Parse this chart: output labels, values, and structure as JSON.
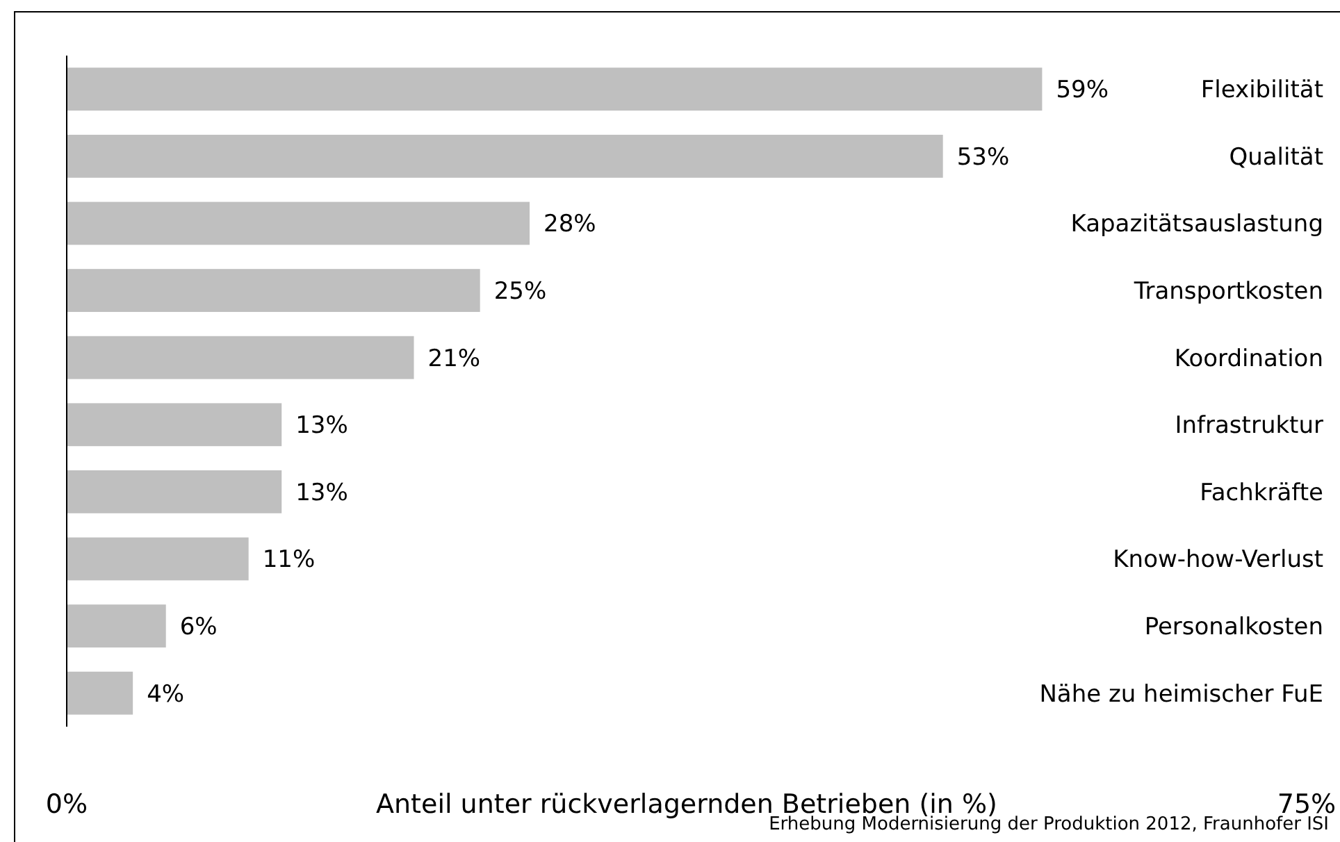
{
  "chart_data": {
    "type": "bar",
    "orientation": "horizontal",
    "xlabel": "Anteil unter rückverlagernden Betrieben (in %)",
    "categories": [
      "Flexibilität",
      "Qualität",
      "Kapazitätsauslastung",
      "Transportkosten",
      "Koordination",
      "Infrastruktur",
      "Fachkräfte",
      "Know-how-Verlust",
      "Personalkosten",
      "Nähe zu heimischer FuE"
    ],
    "values": [
      59,
      53,
      28,
      25,
      21,
      13,
      13,
      11,
      6,
      4
    ],
    "value_labels": [
      "59%",
      "53%",
      "28%",
      "25%",
      "21%",
      "13%",
      "13%",
      "11%",
      "6%",
      "4%"
    ],
    "color": "#bfbfbf",
    "xlim": [
      0,
      75
    ],
    "xticks": [
      {
        "value": 0,
        "label": "0%"
      },
      {
        "value": 75,
        "label": "75%"
      }
    ],
    "grid": false,
    "annotations": [
      "Erhebung Modernisierung der Produktion 2012, Fraunhofer ISI"
    ]
  }
}
